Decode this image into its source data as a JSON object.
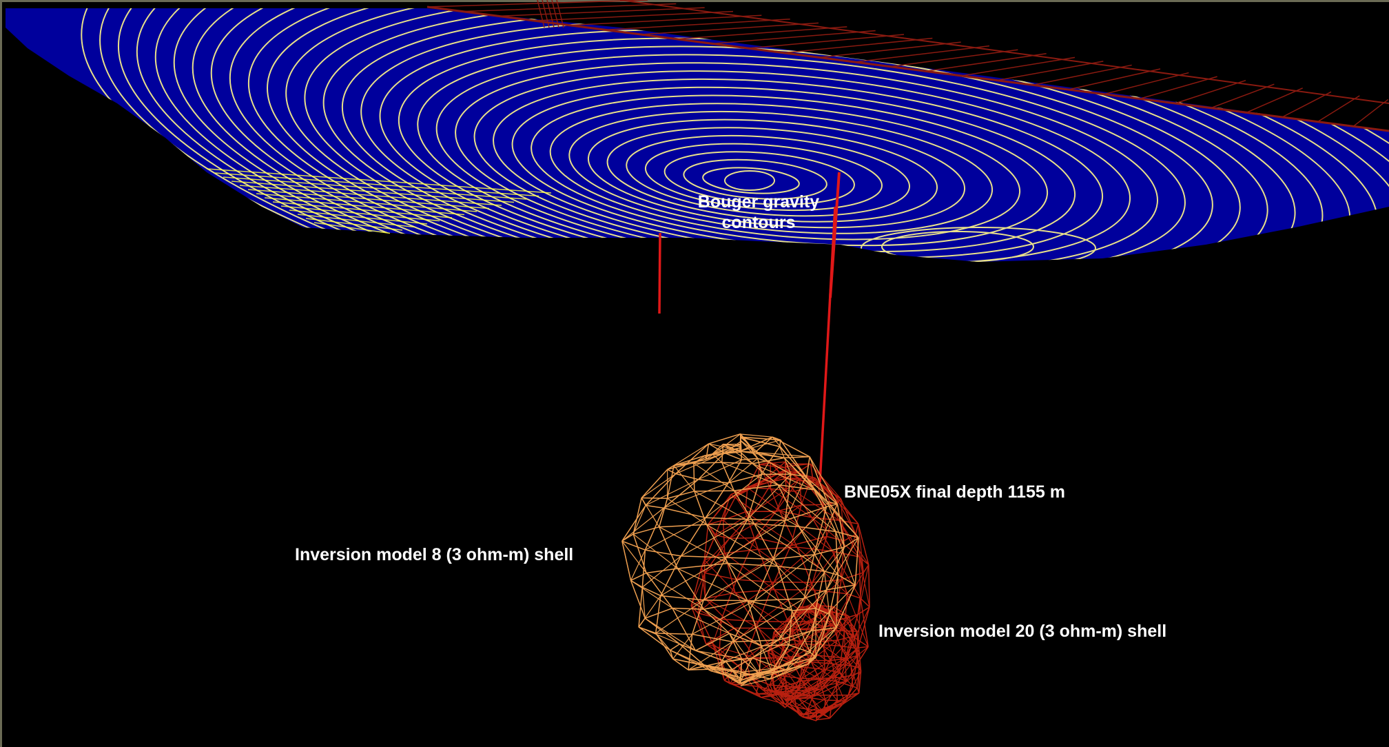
{
  "labels": {
    "gravity_line1": "Bouger gravity",
    "gravity_line2": "contours",
    "borehole": "BNE05X final depth 1155 m",
    "model8": "Inversion model 8 (3 ohm-m) shell",
    "model20": "Inversion model 20 (3 ohm-m) shell"
  },
  "colors": {
    "background": "#000000",
    "gravity_surface": "#00009c",
    "contour": "#e8e08a",
    "contour_bright": "#ffff40",
    "borehole": "#e01818",
    "shell8": "#f0a050",
    "shell20": "#b82010",
    "grid": "#8a1a10"
  }
}
